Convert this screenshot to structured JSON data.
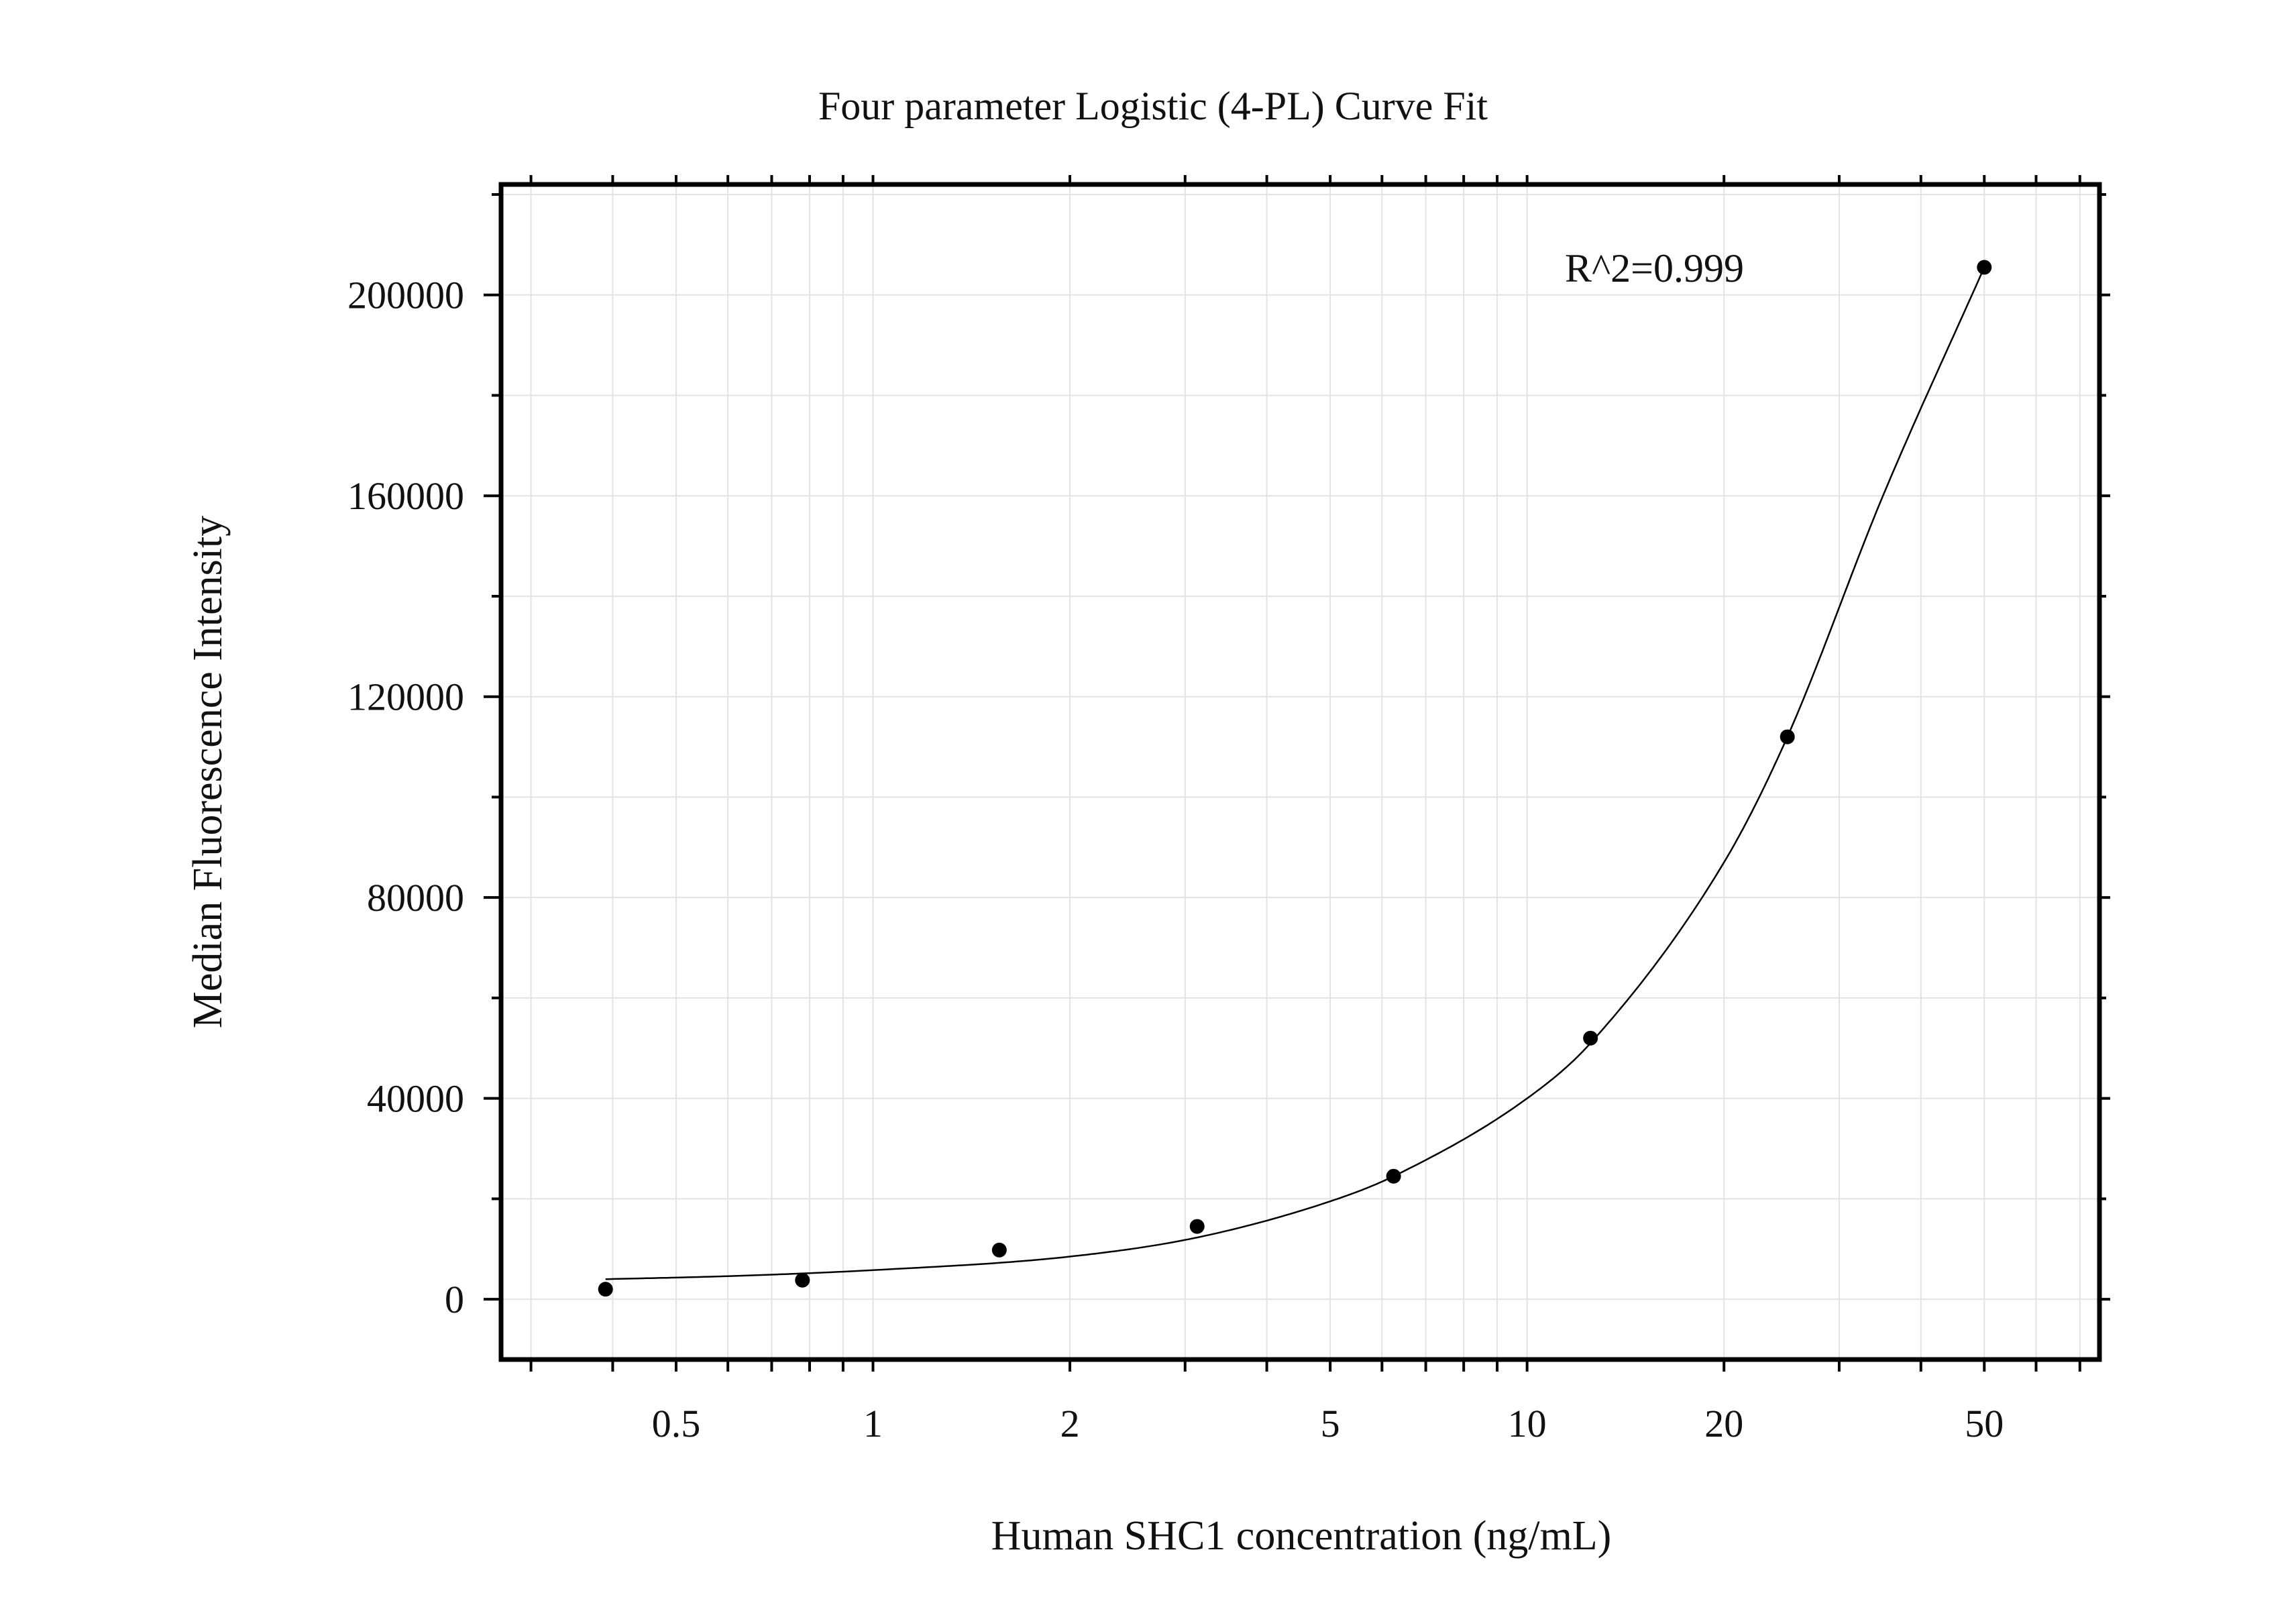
{
  "chart_data": {
    "type": "scatter",
    "title": "Four parameter Logistic (4-PL) Curve Fit",
    "xlabel": "Human SHC1 concentration (ng/mL)",
    "ylabel": "Median Fluorescence Intensity",
    "x_scale": "log",
    "xlim": [
      0.27,
      75
    ],
    "ylim": [
      -12000,
      222000
    ],
    "x_ticks": [
      0.5,
      1,
      2,
      5,
      10,
      20,
      50
    ],
    "x_tick_labels": [
      "0.5",
      "1",
      "2",
      "5",
      "10",
      "20",
      "50"
    ],
    "y_ticks": [
      0,
      40000,
      80000,
      120000,
      160000,
      200000
    ],
    "y_tick_labels": [
      "0",
      "40000",
      "80000",
      "120000",
      "160000",
      "200000"
    ],
    "grid": true,
    "annotation": "R^2=0.999",
    "series": [
      {
        "mode": "markers",
        "x": [
          0.39,
          0.78,
          1.56,
          3.13,
          6.25,
          12.5,
          25,
          50
        ],
        "y": [
          2000,
          3800,
          9800,
          14500,
          24500,
          52000,
          112000,
          205500
        ]
      },
      {
        "mode": "line",
        "x": [
          0.39,
          0.6,
          1,
          2,
          3.13,
          5,
          6.25,
          10,
          12.5,
          20,
          25,
          35,
          50
        ],
        "y": [
          4000,
          4600,
          5800,
          8500,
          12300,
          19500,
          24500,
          40000,
          51000,
          87000,
          112000,
          160000,
          205500
        ]
      }
    ],
    "colors": {
      "points": "#000000",
      "curve": "#000000",
      "grid": "#e3e3e3",
      "frame": "#000000"
    }
  }
}
